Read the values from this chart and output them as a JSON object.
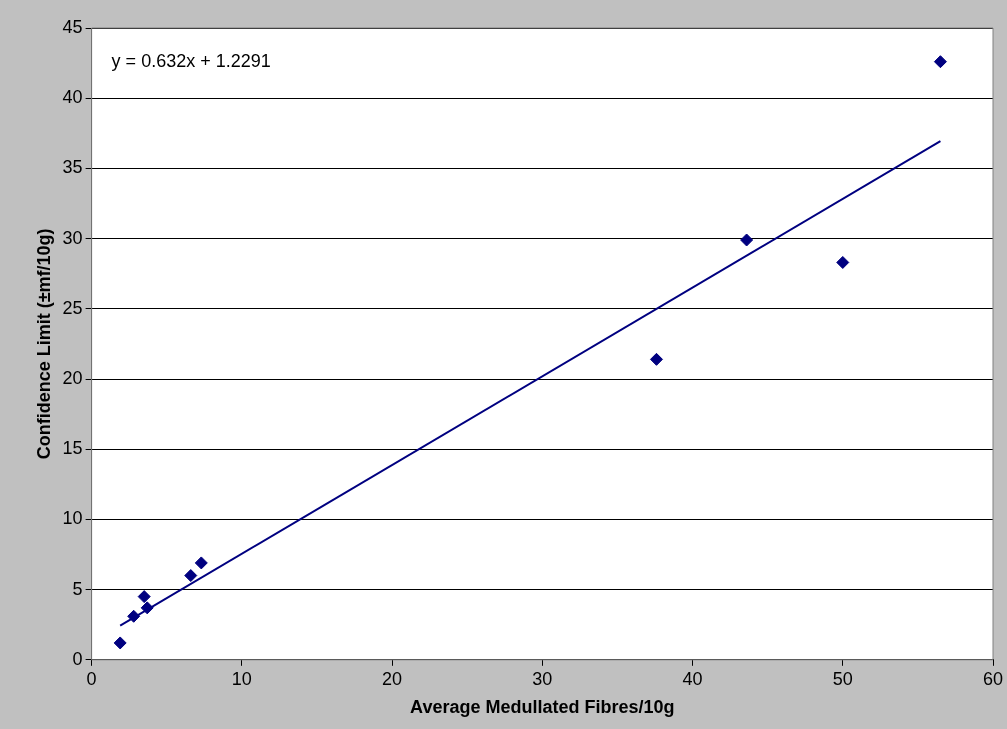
{
  "chart_data": {
    "type": "scatter",
    "xlabel": "Average Medullated Fibres/10g",
    "ylabel": "Confidence Limit (±mf/10g)",
    "annotations": [
      "y = 0.632x + 1.2291"
    ],
    "series": [
      {
        "type": "scatter",
        "color": "#000080",
        "x": [
          1.9,
          2.8,
          3.5,
          3.7,
          6.6,
          7.3,
          37.6,
          43.6,
          50.0,
          56.5
        ],
        "values": [
          1.2,
          3.1,
          4.5,
          3.7,
          6.0,
          6.9,
          21.4,
          29.9,
          28.3,
          42.6
        ],
        "marker": "diamond"
      },
      {
        "type": "line",
        "color": "#000080",
        "x": [
          1.9,
          56.5
        ],
        "values": [
          2.43,
          36.94
        ],
        "marker": "none",
        "line_style": "solid"
      }
    ],
    "xlim": [
      0,
      60
    ],
    "xticks": [
      0,
      10,
      20,
      30,
      40,
      50,
      60
    ],
    "ylim": [
      0,
      45
    ],
    "yticks": [
      0,
      5,
      10,
      15,
      20,
      25,
      30,
      35,
      40,
      45
    ],
    "grid": "y",
    "legend": false
  }
}
